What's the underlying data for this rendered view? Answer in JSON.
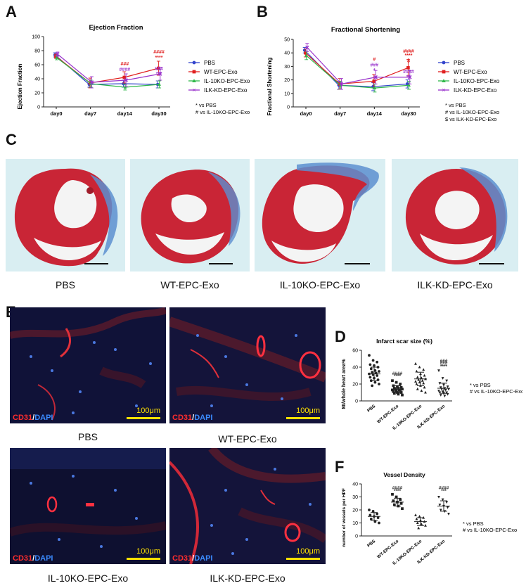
{
  "panels": {
    "A": "A",
    "B": "B",
    "C": "C",
    "D": "D",
    "E": "E",
    "F": "F"
  },
  "colors": {
    "PBS": "#3344cc",
    "WT": "#e02020",
    "IL10KO": "#2fb84a",
    "ILK": "#9933cc",
    "dark": "#222222"
  },
  "chart_data": [
    {
      "type": "line",
      "title": "Ejection Fraction",
      "xlabel": "",
      "ylabel": "Ejection Fraction",
      "categories": [
        "day0",
        "day7",
        "day14",
        "day30"
      ],
      "ylim": [
        0,
        100
      ],
      "yticks": [
        "0",
        "20",
        "40",
        "60",
        "80",
        "100"
      ],
      "series": [
        {
          "name": "PBS",
          "values": [
            74,
            32,
            33,
            32
          ],
          "err": [
            3,
            4,
            5,
            5
          ]
        },
        {
          "name": "WT-EPC-Exo",
          "values": [
            72,
            34,
            42,
            55
          ],
          "err": [
            3,
            7,
            8,
            10
          ]
        },
        {
          "name": "IL-10KO-EPC-Exo",
          "values": [
            70,
            33,
            28,
            32
          ],
          "err": [
            3,
            5,
            4,
            5
          ]
        },
        {
          "name": "ILK-KD-EPC-Exo",
          "values": [
            75,
            35,
            38,
            47
          ],
          "err": [
            3,
            8,
            9,
            9
          ]
        }
      ],
      "annotations": [
        {
          "x": "day14",
          "y": 59,
          "text": "###",
          "color": "#e02020"
        },
        {
          "x": "day14",
          "y": 51,
          "text": "####",
          "color": "#9933cc"
        },
        {
          "x": "day30",
          "y": 76,
          "text": "####",
          "color": "#e02020"
        },
        {
          "x": "day30",
          "y": 68,
          "text": "****",
          "color": "#e02020"
        },
        {
          "x": "day30",
          "y": 52,
          "text": "###",
          "color": "#9933cc"
        },
        {
          "x": "day30",
          "y": 45,
          "text": "***",
          "color": "#9933cc"
        }
      ],
      "footnotes": [
        "* vs PBS",
        "# vs IL-10KO-EPC-Exo"
      ]
    },
    {
      "type": "line",
      "title": "Fractional Shortening",
      "xlabel": "",
      "ylabel": "Fractional Shortening",
      "categories": [
        "day0",
        "day7",
        "day14",
        "day30"
      ],
      "ylim": [
        0,
        50
      ],
      "yticks": [
        "0",
        "10",
        "20",
        "30",
        "40",
        "50"
      ],
      "series": [
        {
          "name": "PBS",
          "values": [
            42,
            16,
            15,
            17
          ],
          "err": [
            2,
            3,
            3,
            3
          ]
        },
        {
          "name": "WT-EPC-Exo",
          "values": [
            40,
            17,
            19,
            29
          ],
          "err": [
            3,
            4,
            5,
            6
          ]
        },
        {
          "name": "IL-10KO-EPC-Exo",
          "values": [
            38,
            16,
            14,
            16
          ],
          "err": [
            3,
            3,
            3,
            3
          ]
        },
        {
          "name": "ILK-KD-EPC-Exo",
          "values": [
            44,
            17,
            22,
            22
          ],
          "err": [
            3,
            4,
            5,
            5
          ]
        }
      ],
      "annotations": [
        {
          "x": "day14",
          "y": 34,
          "text": "#",
          "color": "#e02020"
        },
        {
          "x": "day14",
          "y": 30,
          "text": "###",
          "color": "#9933cc"
        },
        {
          "x": "day14",
          "y": 26,
          "text": "*",
          "color": "#9933cc"
        },
        {
          "x": "day30",
          "y": 40,
          "text": "####",
          "color": "#e02020"
        },
        {
          "x": "day30",
          "y": 37,
          "text": "****",
          "color": "#e02020"
        },
        {
          "x": "day30",
          "y": 33,
          "text": "$",
          "color": "#e02020"
        },
        {
          "x": "day30",
          "y": 25,
          "text": "####",
          "color": "#9933cc"
        },
        {
          "x": "day30",
          "y": 21,
          "text": "**",
          "color": "#9933cc"
        }
      ],
      "footnotes": [
        "* vs PBS",
        "# vs IL-10KO-EPC-Exo",
        "$ vs ILK-KD-EPC-Exo"
      ]
    },
    {
      "type": "scatter",
      "title": "Infarct scar size (%)",
      "xlabel": "",
      "ylabel": "MI/whole heart area%",
      "categories": [
        "PBS",
        "WT-EPC-Exo",
        "IL-10KO-EPC-Exo",
        "ILK-KD-EPC-Exo"
      ],
      "ylim": [
        0,
        60
      ],
      "yticks": [
        "0",
        "20",
        "40",
        "60"
      ],
      "groups": [
        {
          "name": "PBS",
          "marker": "circle",
          "mean": 32,
          "sd": 8,
          "points": [
            54,
            48,
            46,
            43,
            42,
            40,
            38,
            36,
            35,
            34,
            33,
            32,
            31,
            30,
            28,
            27,
            25,
            24,
            22,
            20,
            18
          ]
        },
        {
          "name": "WT-EPC-Exo",
          "marker": "square",
          "mean": 14,
          "sd": 4,
          "points": [
            24,
            22,
            20,
            18,
            17,
            16,
            15,
            15,
            14,
            14,
            13,
            13,
            12,
            12,
            11,
            10,
            10,
            9,
            8,
            7
          ]
        },
        {
          "name": "IL-10KO-EPC-Exo",
          "marker": "triangle",
          "mean": 26,
          "sd": 8,
          "points": [
            44,
            40,
            37,
            35,
            32,
            30,
            28,
            27,
            26,
            25,
            24,
            23,
            22,
            21,
            20,
            18,
            16,
            14,
            12,
            10
          ]
        },
        {
          "name": "ILK-KD-EPC-Exo",
          "marker": "triangle-down",
          "mean": 15,
          "sd": 6,
          "points": [
            36,
            27,
            24,
            21,
            19,
            17,
            16,
            15,
            14,
            14,
            13,
            12,
            11,
            10,
            10,
            9,
            8,
            7,
            6
          ]
        }
      ],
      "annotations": [
        {
          "x": "WT-EPC-Exo",
          "y": 31,
          "text": "####"
        },
        {
          "x": "WT-EPC-Exo",
          "y": 28,
          "text": "****"
        },
        {
          "x": "ILK-KD-EPC-Exo",
          "y": 46,
          "text": "###"
        },
        {
          "x": "ILK-KD-EPC-Exo",
          "y": 43,
          "text": "###"
        },
        {
          "x": "ILK-KD-EPC-Exo",
          "y": 39,
          "text": "****"
        }
      ],
      "footnotes": [
        "* vs PBS",
        "# vs IL-10KO-EPC-Exo"
      ]
    },
    {
      "type": "scatter",
      "title": "Vessel Density",
      "xlabel": "",
      "ylabel": "number of vessels per HPF",
      "categories": [
        "PBS",
        "WT-EPC-Exo",
        "IL-10KO-EPC-Exo",
        "ILK-KD-EPC-Exo"
      ],
      "ylim": [
        0,
        40
      ],
      "yticks": [
        "0",
        "10",
        "20",
        "30",
        "40"
      ],
      "groups": [
        {
          "name": "PBS",
          "marker": "circle",
          "mean": 15,
          "sd": 3,
          "points": [
            20,
            19,
            17,
            16,
            15,
            14,
            13,
            11,
            10
          ]
        },
        {
          "name": "WT-EPC-Exo",
          "marker": "square",
          "mean": 26,
          "sd": 3,
          "points": [
            32,
            30,
            28,
            27,
            26,
            25,
            24,
            23,
            21
          ]
        },
        {
          "name": "IL-10KO-EPC-Exo",
          "marker": "triangle",
          "mean": 11,
          "sd": 3,
          "points": [
            16,
            15,
            14,
            13,
            12,
            11,
            10,
            9,
            8,
            6
          ]
        },
        {
          "name": "ILK-KD-EPC-Exo",
          "marker": "triangle-down",
          "mean": 23,
          "sd": 4,
          "points": [
            30,
            28,
            26,
            24,
            23,
            22,
            20,
            19,
            17
          ]
        }
      ],
      "annotations": [
        {
          "x": "WT-EPC-Exo",
          "y": 36,
          "text": "####"
        },
        {
          "x": "WT-EPC-Exo",
          "y": 33.5,
          "text": "****"
        },
        {
          "x": "ILK-KD-EPC-Exo",
          "y": 36,
          "text": "####"
        },
        {
          "x": "ILK-KD-EPC-Exo",
          "y": 33.5,
          "text": "***"
        }
      ],
      "footnotes": [
        "* vs PBS",
        "# vs IL-10KO-EPC-Exo"
      ]
    }
  ],
  "histology": {
    "captions": [
      "PBS",
      "WT-EPC-Exo",
      "IL-10KO-EPC-Exo",
      "ILK-KD-EPC-Exo"
    ]
  },
  "immuno": {
    "stain_cd31": "CD31",
    "stain_slash": "/",
    "stain_dapi": "DAPI",
    "scale": "100μm",
    "captions": [
      "PBS",
      "WT-EPC-Exo",
      "IL-10KO-EPC-Exo",
      "ILK-KD-EPC-Exo"
    ]
  }
}
